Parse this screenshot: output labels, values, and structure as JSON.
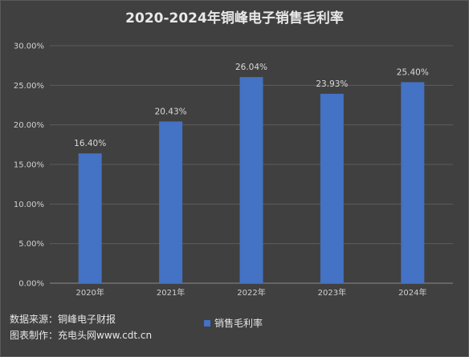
{
  "title": "2020-2024年铜峰电子销售毛利率",
  "footer": {
    "source": "数据来源：铜峰电子财报",
    "maker": "图表制作：充电头网www.cdt.cn"
  },
  "legend": {
    "label": "销售毛利率"
  },
  "colors": {
    "bar": "#4472c4",
    "grid": "#5c5c5c",
    "axis": "#8a8a8a"
  },
  "chart_data": {
    "type": "bar",
    "title": "2020-2024年铜峰电子销售毛利率",
    "categories": [
      "2020年",
      "2021年",
      "2022年",
      "2023年",
      "2024年"
    ],
    "series": [
      {
        "name": "销售毛利率",
        "values": [
          16.4,
          20.43,
          26.04,
          23.93,
          25.4
        ],
        "labels": [
          "16.40%",
          "20.43%",
          "26.04%",
          "23.93%",
          "25.40%"
        ]
      }
    ],
    "ylim": [
      0,
      30
    ],
    "yticks": [
      0,
      5,
      10,
      15,
      20,
      25,
      30
    ],
    "ytick_labels": [
      "0.00%",
      "5.00%",
      "10.00%",
      "15.00%",
      "20.00%",
      "25.00%",
      "30.00%"
    ],
    "grid": true,
    "legend_position": "bottom"
  }
}
